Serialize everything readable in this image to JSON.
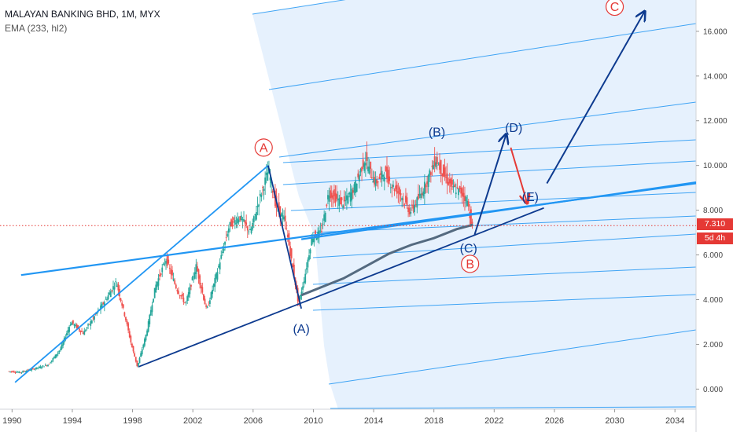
{
  "legend": {
    "title": "MALAYAN BANKING BHD, 1M, MYX",
    "indicator": "EMA (233, hl2)"
  },
  "price_label": "7.310",
  "countdown_label": "5d 4h",
  "colors": {
    "candle_up": "#26a69a",
    "candle_down": "#ef5350",
    "trend": "#2196f3",
    "wave_main": "#0d3a8f",
    "wave_red": "#e53935",
    "pitchfork_fill": "#d5e8fb",
    "ema": "#546a80",
    "price_line": "#e53935"
  },
  "chart_data": {
    "type": "candlestick",
    "title": "MALAYAN BANKING BHD, 1M, MYX",
    "indicator": "EMA (233, hl2)",
    "xlabel": "",
    "ylabel": "",
    "xlim": [
      1989.2,
      2035.4
    ],
    "ylim": [
      -0.9,
      17.4
    ],
    "x_ticks": [
      1990,
      1994,
      1998,
      2002,
      2006,
      2010,
      2014,
      2018,
      2022,
      2026,
      2030,
      2034
    ],
    "y_ticks": [
      0,
      2,
      4,
      6,
      8,
      10,
      12,
      14,
      16
    ],
    "y_tick_labels": [
      "0.000",
      "2.000",
      "4.000",
      "6.000",
      "8.000",
      "10.000",
      "12.000",
      "14.000",
      "16.000"
    ],
    "last_price": 7.31,
    "price_path": [
      [
        1989.8,
        0.8
      ],
      [
        1990.6,
        0.75
      ],
      [
        1991.5,
        0.9
      ],
      [
        1992.5,
        1.1
      ],
      [
        1993.3,
        1.8
      ],
      [
        1994.0,
        3.0
      ],
      [
        1994.8,
        2.5
      ],
      [
        1995.5,
        3.2
      ],
      [
        1996.3,
        4.0
      ],
      [
        1997.0,
        4.8
      ],
      [
        1997.6,
        3.2
      ],
      [
        1998.0,
        2.0
      ],
      [
        1998.4,
        1.0
      ],
      [
        1999.0,
        2.5
      ],
      [
        1999.6,
        4.6
      ],
      [
        2000.3,
        5.8
      ],
      [
        2001.0,
        4.5
      ],
      [
        2001.6,
        3.8
      ],
      [
        2002.3,
        5.5
      ],
      [
        2003.0,
        3.5
      ],
      [
        2003.8,
        5.5
      ],
      [
        2004.5,
        7.3
      ],
      [
        2005.2,
        7.7
      ],
      [
        2005.9,
        7.0
      ],
      [
        2006.5,
        8.5
      ],
      [
        2007.1,
        9.8
      ],
      [
        2007.6,
        8.2
      ],
      [
        2008.2,
        7.5
      ],
      [
        2008.7,
        5.5
      ],
      [
        2009.1,
        3.8
      ],
      [
        2009.5,
        5.0
      ],
      [
        2010.0,
        6.8
      ],
      [
        2010.6,
        7.0
      ],
      [
        2011.1,
        8.8
      ],
      [
        2011.6,
        8.5
      ],
      [
        2012.1,
        8.3
      ],
      [
        2012.8,
        9.0
      ],
      [
        2013.5,
        10.3
      ],
      [
        2014.2,
        9.2
      ],
      [
        2014.8,
        9.7
      ],
      [
        2015.3,
        9.1
      ],
      [
        2015.9,
        8.7
      ],
      [
        2016.5,
        7.9
      ],
      [
        2017.2,
        8.7
      ],
      [
        2017.8,
        9.6
      ],
      [
        2018.2,
        10.3
      ],
      [
        2018.7,
        9.6
      ],
      [
        2019.3,
        9.0
      ],
      [
        2019.9,
        8.8
      ],
      [
        2020.3,
        8.4
      ],
      [
        2020.6,
        7.31
      ]
    ],
    "ema": [
      [
        2009.2,
        4.2
      ],
      [
        2010.5,
        4.55
      ],
      [
        2012.0,
        4.95
      ],
      [
        2013.5,
        5.5
      ],
      [
        2015.0,
        6.05
      ],
      [
        2016.5,
        6.45
      ],
      [
        2018.0,
        6.75
      ],
      [
        2019.5,
        7.15
      ],
      [
        2020.6,
        7.35
      ]
    ],
    "trendlines": [
      {
        "from": [
          1990.2,
          0.3
        ],
        "to": [
          2007.0,
          10.0
        ]
      },
      {
        "from": [
          1990.6,
          5.1
        ],
        "to": [
          2035.4,
          9.2
        ]
      },
      {
        "from": [
          1998.4,
          1.0
        ],
        "to": [
          2025.3,
          8.1
        ]
      },
      {
        "from": [
          2007.0,
          10.0
        ],
        "to": [
          2009.2,
          3.6
        ]
      }
    ],
    "wave_paths": [
      {
        "from": [
          2020.7,
          6.9
        ],
        "to": [
          2022.8,
          11.4
        ],
        "arrow": true
      },
      {
        "from": [
          2025.5,
          9.2
        ],
        "to": [
          2032.0,
          16.9
        ],
        "arrow": true
      },
      {
        "from": [
          2023.1,
          10.8
        ],
        "to": [
          2024.2,
          8.3
        ],
        "arrow": true,
        "color": "red"
      }
    ],
    "wave_labels": [
      {
        "text": "A",
        "x": 2006.7,
        "y": 10.8,
        "circled": true,
        "color": "red"
      },
      {
        "text": "B",
        "x": 2020.4,
        "y": 5.6,
        "circled": true,
        "color": "red"
      },
      {
        "text": "C",
        "x": 2030.0,
        "y": 17.1,
        "circled": true,
        "color": "red"
      },
      {
        "text": "(A)",
        "x": 2009.2,
        "y": 2.7,
        "circled": false,
        "color": "main"
      },
      {
        "text": "(B)",
        "x": 2018.2,
        "y": 11.5,
        "circled": false,
        "color": "main"
      },
      {
        "text": "(C)",
        "x": 2020.3,
        "y": 6.3,
        "circled": false,
        "color": "main"
      },
      {
        "text": "(D)",
        "x": 2023.3,
        "y": 11.7,
        "circled": false,
        "color": "main"
      },
      {
        "text": "(E)",
        "x": 2024.4,
        "y": 8.6,
        "circled": false,
        "color": "main"
      }
    ]
  }
}
